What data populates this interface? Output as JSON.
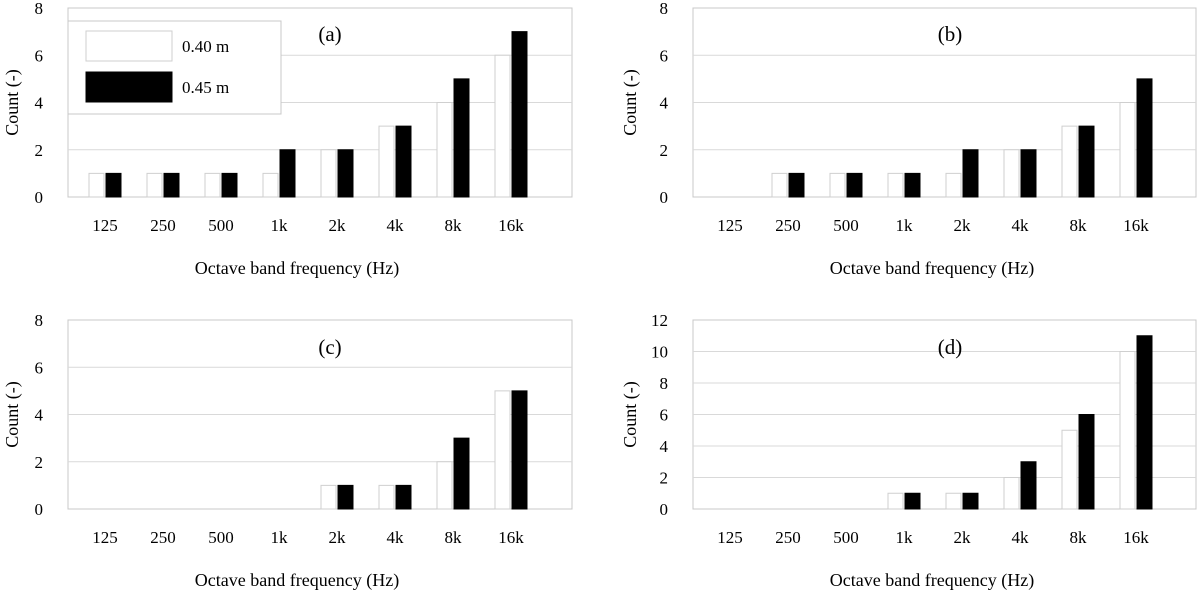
{
  "colors": {
    "series_040": "#ffffff",
    "series_045": "#000000",
    "grid": "#d9d9d9",
    "outline": "#c8c8c8"
  },
  "legend": {
    "entries": [
      "0.40 m",
      "0.45 m"
    ]
  },
  "chart_data": [
    {
      "type": "bar",
      "panel": "(a)",
      "categories": [
        "125",
        "250",
        "500",
        "1k",
        "2k",
        "4k",
        "8k",
        "16k"
      ],
      "series": [
        {
          "name": "0.40 m",
          "values": [
            1,
            1,
            1,
            1,
            2,
            3,
            4,
            6
          ]
        },
        {
          "name": "0.45 m",
          "values": [
            1,
            1,
            1,
            2,
            2,
            3,
            5,
            7
          ]
        }
      ],
      "xlabel": "Octave band frequency (Hz)",
      "ylabel": "Count (-)",
      "ylim": [
        0,
        8
      ],
      "yticks": [
        "0",
        "2",
        "4",
        "6",
        "8"
      ],
      "grid": true,
      "legend_position": "top-left"
    },
    {
      "type": "bar",
      "panel": "(b)",
      "categories": [
        "125",
        "250",
        "500",
        "1k",
        "2k",
        "4k",
        "8k",
        "16k"
      ],
      "series": [
        {
          "name": "0.40 m",
          "values": [
            0,
            1,
            1,
            1,
            1,
            2,
            3,
            4
          ]
        },
        {
          "name": "0.45 m",
          "values": [
            0,
            1,
            1,
            1,
            2,
            2,
            3,
            5
          ]
        }
      ],
      "xlabel": "Octave band frequency (Hz)",
      "ylabel": "Count (-)",
      "ylim": [
        0,
        8
      ],
      "yticks": [
        "0",
        "2",
        "4",
        "6",
        "8"
      ],
      "grid": true
    },
    {
      "type": "bar",
      "panel": "(c)",
      "categories": [
        "125",
        "250",
        "500",
        "1k",
        "2k",
        "4k",
        "8k",
        "16k"
      ],
      "series": [
        {
          "name": "0.40 m",
          "values": [
            0,
            0,
            0,
            0,
            1,
            1,
            2,
            5
          ]
        },
        {
          "name": "0.45 m",
          "values": [
            0,
            0,
            0,
            0,
            1,
            1,
            3,
            5
          ]
        }
      ],
      "xlabel": "Octave band frequency (Hz)",
      "ylabel": "Count (-)",
      "ylim": [
        0,
        8
      ],
      "yticks": [
        "0",
        "2",
        "4",
        "6",
        "8"
      ],
      "grid": true
    },
    {
      "type": "bar",
      "panel": "(d)",
      "categories": [
        "125",
        "250",
        "500",
        "1k",
        "2k",
        "4k",
        "8k",
        "16k"
      ],
      "series": [
        {
          "name": "0.40 m",
          "values": [
            0,
            0,
            0,
            1,
            1,
            2,
            5,
            10
          ]
        },
        {
          "name": "0.45 m",
          "values": [
            0,
            0,
            0,
            1,
            1,
            3,
            6,
            11
          ]
        }
      ],
      "xlabel": "Octave band frequency (Hz)",
      "ylabel": "Count (-)",
      "ylim": [
        0,
        12
      ],
      "yticks": [
        "0",
        "2",
        "4",
        "6",
        "8",
        "10",
        "12"
      ],
      "grid": true
    }
  ]
}
